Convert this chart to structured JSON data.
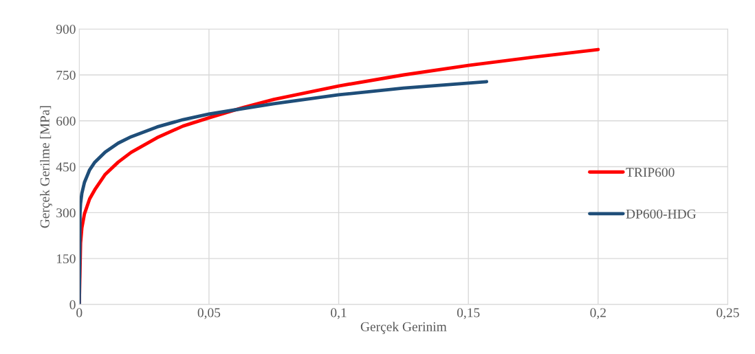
{
  "chart_data": {
    "type": "line",
    "xlabel": "Gerçek Gerinim",
    "ylabel": "Gerçek Gerilme [MPa]",
    "xlim": [
      0,
      0.25
    ],
    "ylim": [
      0,
      900
    ],
    "xticks": [
      0,
      {
        "value": 0.05,
        "label": "0,05"
      },
      {
        "value": 0.1,
        "label": "0,1"
      },
      {
        "value": 0.15,
        "label": "0,15"
      },
      {
        "value": 0.2,
        "label": "0,2"
      },
      {
        "value": 0.25,
        "label": "0,25"
      }
    ],
    "yticks": [
      0,
      150,
      300,
      450,
      600,
      750,
      900
    ],
    "grid": true,
    "legend": "right",
    "marker": "none",
    "line_style": "solid",
    "series": [
      {
        "name": "TRIP600",
        "color": "#ff0000",
        "x": [
          0,
          0.0005,
          0.001,
          0.002,
          0.004,
          0.006,
          0.01,
          0.015,
          0.02,
          0.03,
          0.04,
          0.05,
          0.063,
          0.075,
          0.1,
          0.125,
          0.15,
          0.175,
          0.2
        ],
        "values": [
          0,
          200,
          250,
          296,
          345,
          375,
          425,
          465,
          497,
          545,
          583,
          610,
          643,
          670,
          714,
          750,
          781,
          808,
          833
        ]
      },
      {
        "name": "DP600-HDG",
        "color": "#1f4e79",
        "x": [
          0,
          0.0003,
          0.0005,
          0.001,
          0.002,
          0.004,
          0.006,
          0.01,
          0.015,
          0.02,
          0.03,
          0.04,
          0.05,
          0.063,
          0.075,
          0.1,
          0.125,
          0.157
        ],
        "values": [
          0,
          300,
          330,
          363,
          399,
          440,
          465,
          498,
          527,
          548,
          580,
          604,
          622,
          640,
          656,
          685,
          707,
          728
        ]
      }
    ]
  }
}
